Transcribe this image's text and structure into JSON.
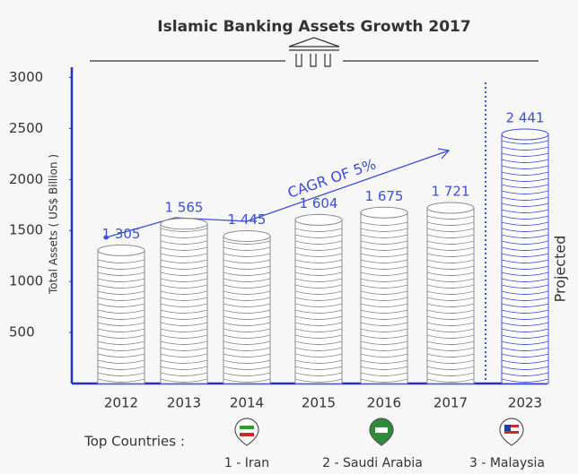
{
  "chart_data": {
    "type": "bar",
    "title": "Islamic Banking Assets Growth 2017",
    "ylabel": "Total Assets ( US$ Billion )",
    "categories": [
      "2012",
      "2013",
      "2014",
      "2015",
      "2016",
      "2017",
      "2023"
    ],
    "values": [
      1305,
      1565,
      1445,
      1604,
      1675,
      1721,
      2441
    ],
    "value_labels": [
      "1 305",
      "1 565",
      "1 445",
      "1 604",
      "1 675",
      "1 721",
      "2 441"
    ],
    "colors": [
      "#8a8a8a",
      "#8a8a8a",
      "#8a8a8a",
      "#8a8a8a",
      "#8a8a8a",
      "#8a8a8a",
      "#3b4fd8"
    ],
    "ylim": [
      0,
      3100
    ],
    "yticks": [
      500,
      1000,
      1500,
      2000,
      2500,
      3000
    ],
    "annotations": {
      "cagr": "CAGR OF 5%",
      "projected": "Projected"
    }
  },
  "top_countries": {
    "label": "Top Countries :",
    "items": [
      "1 - Iran",
      "2 - Saudi Arabia",
      "3 - Malaysia"
    ]
  }
}
